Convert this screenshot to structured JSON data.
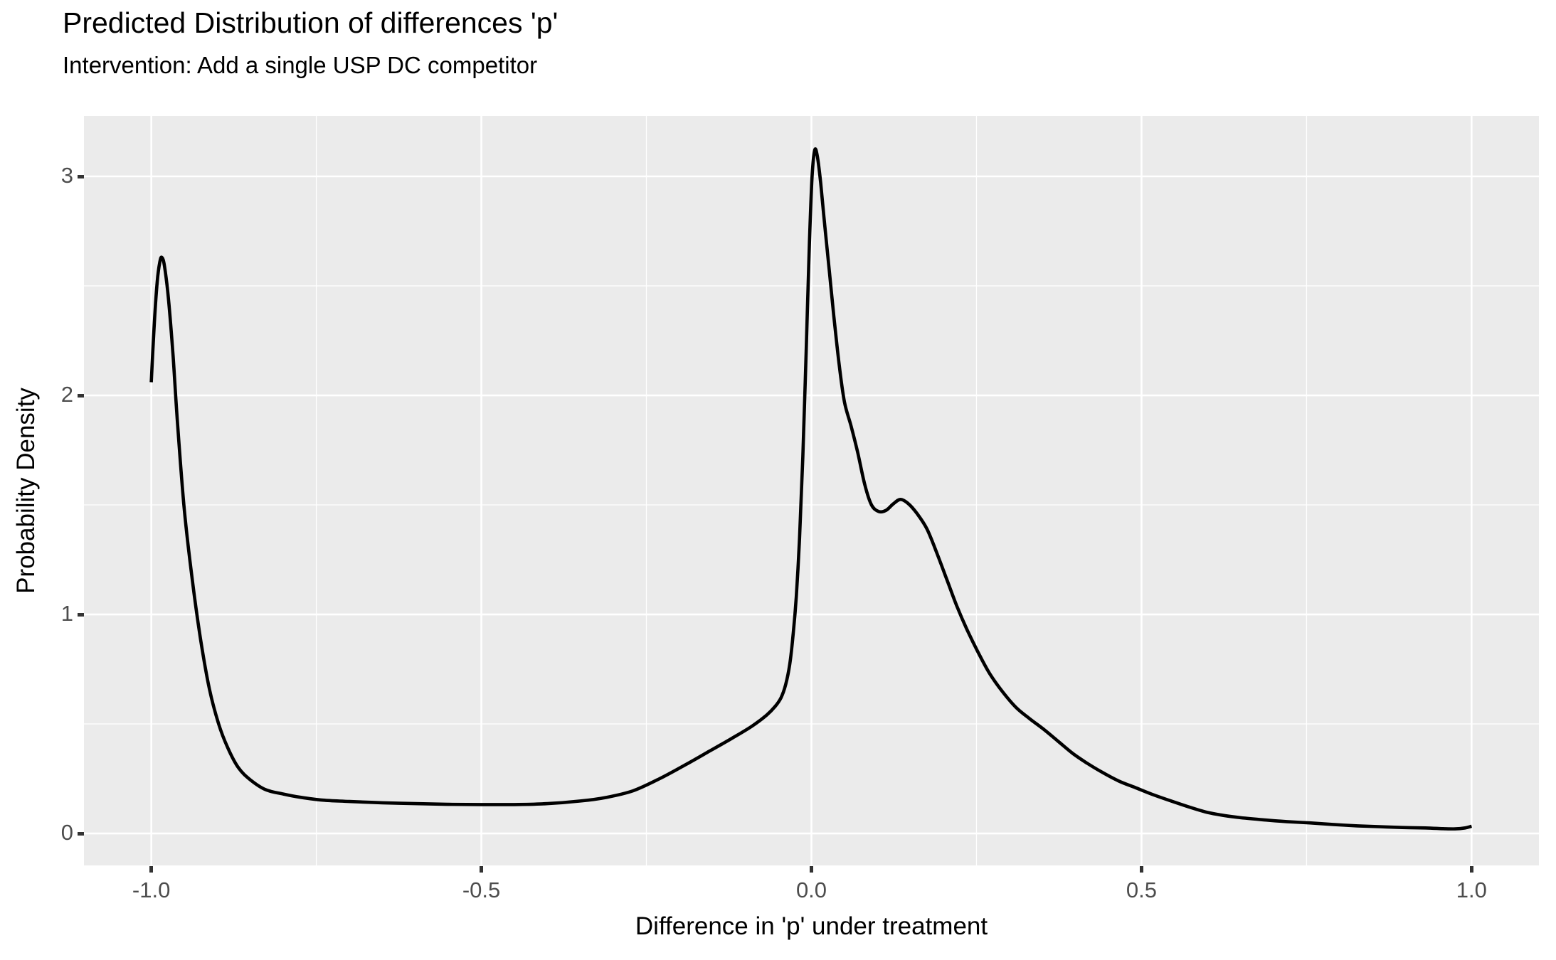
{
  "colors": {
    "background": "#FFFFFF",
    "panel_background": "#EBEBEB",
    "grid": "#FFFFFF",
    "curve": "#000000",
    "tick_label": "#4D4D4D",
    "tick_mark": "#333333",
    "text": "#000000"
  },
  "chart_data": {
    "type": "line",
    "title": "Predicted Distribution of differences 'p'",
    "subtitle": "Intervention: Add a single USP DC competitor",
    "xlabel": "Difference in 'p' under treatment",
    "ylabel": "Probability Density",
    "xlim": [
      -1.102,
      1.102
    ],
    "ylim": [
      -0.146,
      3.276
    ],
    "x_ticks": [
      -1.0,
      -0.5,
      0.0,
      0.5,
      1.0
    ],
    "x_tick_labels": [
      "-1.0",
      "-0.5",
      "0.0",
      "0.5",
      "1.0"
    ],
    "x_minor_ticks": [
      -0.75,
      -0.25,
      0.25,
      0.75
    ],
    "y_ticks": [
      0,
      1,
      2,
      3
    ],
    "y_tick_labels": [
      "0",
      "1",
      "2",
      "3"
    ],
    "y_minor_ticks": [
      0.5,
      1.5,
      2.5
    ],
    "grid": true,
    "legend": false,
    "series": [
      {
        "name": "predicted density of differences in p",
        "points": [
          [
            -1.0,
            2.06
          ],
          [
            -0.996,
            2.3
          ],
          [
            -0.991,
            2.52
          ],
          [
            -0.987,
            2.61
          ],
          [
            -0.984,
            2.63
          ],
          [
            -0.98,
            2.59
          ],
          [
            -0.974,
            2.44
          ],
          [
            -0.967,
            2.18
          ],
          [
            -0.96,
            1.86
          ],
          [
            -0.95,
            1.48
          ],
          [
            -0.938,
            1.16
          ],
          [
            -0.925,
            0.88
          ],
          [
            -0.912,
            0.66
          ],
          [
            -0.898,
            0.5
          ],
          [
            -0.884,
            0.39
          ],
          [
            -0.868,
            0.3
          ],
          [
            -0.85,
            0.245
          ],
          [
            -0.827,
            0.2
          ],
          [
            -0.8,
            0.18
          ],
          [
            -0.774,
            0.165
          ],
          [
            -0.74,
            0.152
          ],
          [
            -0.7,
            0.146
          ],
          [
            -0.65,
            0.14
          ],
          [
            -0.6,
            0.136
          ],
          [
            -0.55,
            0.133
          ],
          [
            -0.5,
            0.132
          ],
          [
            -0.45,
            0.132
          ],
          [
            -0.4,
            0.136
          ],
          [
            -0.35,
            0.148
          ],
          [
            -0.31,
            0.165
          ],
          [
            -0.27,
            0.195
          ],
          [
            -0.23,
            0.25
          ],
          [
            -0.19,
            0.315
          ],
          [
            -0.155,
            0.375
          ],
          [
            -0.12,
            0.435
          ],
          [
            -0.09,
            0.49
          ],
          [
            -0.068,
            0.54
          ],
          [
            -0.055,
            0.58
          ],
          [
            -0.046,
            0.62
          ],
          [
            -0.039,
            0.68
          ],
          [
            -0.033,
            0.77
          ],
          [
            -0.028,
            0.9
          ],
          [
            -0.023,
            1.08
          ],
          [
            -0.018,
            1.35
          ],
          [
            -0.013,
            1.72
          ],
          [
            -0.008,
            2.2
          ],
          [
            -0.003,
            2.7
          ],
          [
            0.001,
            3.0
          ],
          [
            0.005,
            3.12
          ],
          [
            0.009,
            3.09
          ],
          [
            0.014,
            2.97
          ],
          [
            0.02,
            2.78
          ],
          [
            0.027,
            2.57
          ],
          [
            0.034,
            2.36
          ],
          [
            0.042,
            2.14
          ],
          [
            0.05,
            1.97
          ],
          [
            0.06,
            1.86
          ],
          [
            0.07,
            1.74
          ],
          [
            0.081,
            1.59
          ],
          [
            0.091,
            1.5
          ],
          [
            0.102,
            1.47
          ],
          [
            0.113,
            1.475
          ],
          [
            0.124,
            1.505
          ],
          [
            0.135,
            1.525
          ],
          [
            0.147,
            1.505
          ],
          [
            0.16,
            1.46
          ],
          [
            0.175,
            1.39
          ],
          [
            0.19,
            1.28
          ],
          [
            0.205,
            1.16
          ],
          [
            0.22,
            1.04
          ],
          [
            0.235,
            0.935
          ],
          [
            0.252,
            0.83
          ],
          [
            0.27,
            0.73
          ],
          [
            0.29,
            0.645
          ],
          [
            0.31,
            0.575
          ],
          [
            0.33,
            0.525
          ],
          [
            0.352,
            0.475
          ],
          [
            0.374,
            0.42
          ],
          [
            0.396,
            0.365
          ],
          [
            0.418,
            0.32
          ],
          [
            0.44,
            0.28
          ],
          [
            0.465,
            0.24
          ],
          [
            0.49,
            0.21
          ],
          [
            0.515,
            0.18
          ],
          [
            0.545,
            0.148
          ],
          [
            0.575,
            0.118
          ],
          [
            0.6,
            0.096
          ],
          [
            0.625,
            0.082
          ],
          [
            0.65,
            0.072
          ],
          [
            0.685,
            0.062
          ],
          [
            0.72,
            0.054
          ],
          [
            0.755,
            0.048
          ],
          [
            0.79,
            0.041
          ],
          [
            0.825,
            0.035
          ],
          [
            0.86,
            0.031
          ],
          [
            0.895,
            0.027
          ],
          [
            0.93,
            0.025
          ],
          [
            0.955,
            0.022
          ],
          [
            0.975,
            0.021
          ],
          [
            0.99,
            0.025
          ],
          [
            1.0,
            0.033
          ]
        ]
      }
    ]
  }
}
